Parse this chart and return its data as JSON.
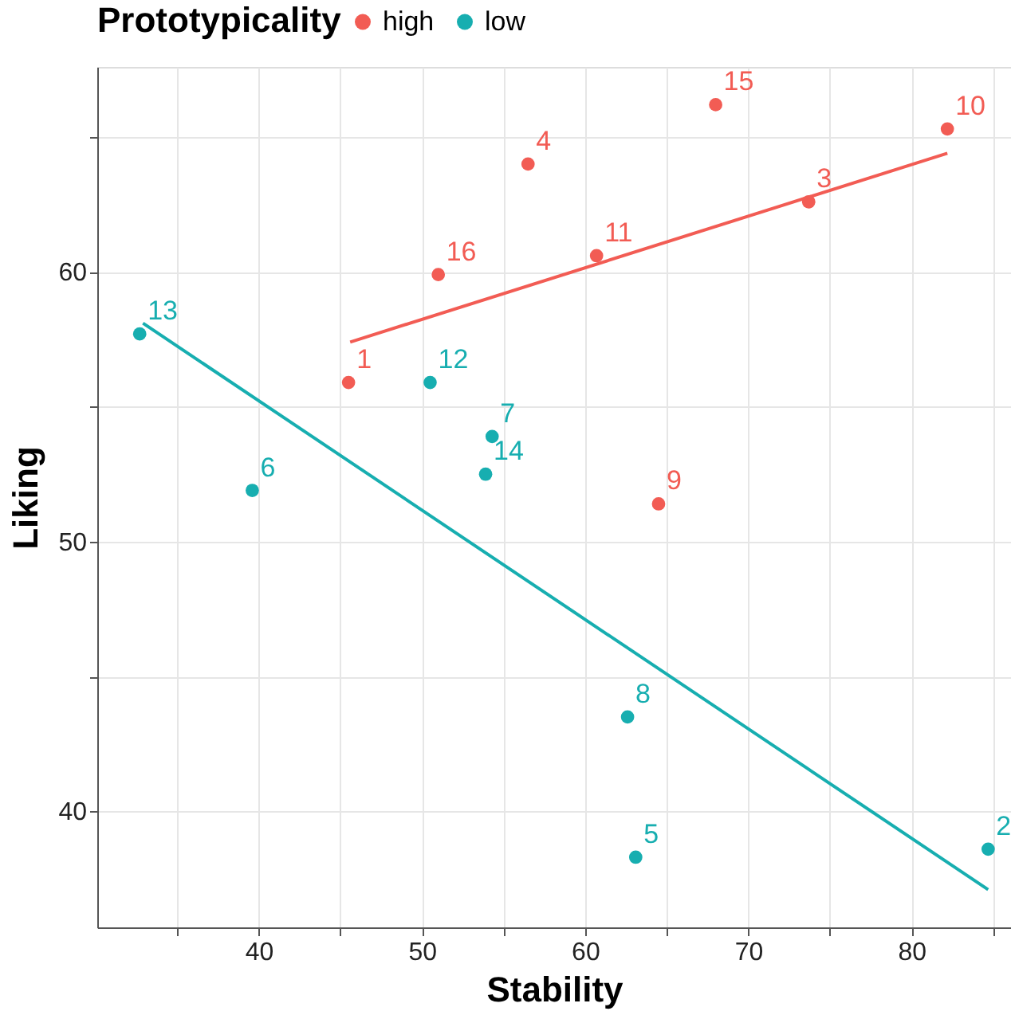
{
  "chart_data": {
    "type": "scatter",
    "xlabel": "Stability",
    "ylabel": "Liking",
    "legend_title": "Prototypicality",
    "legend": "top",
    "grid": true,
    "xlim": [
      30.1,
      86.1
    ],
    "ylim": [
      35.7,
      67.6
    ],
    "xticks": [
      {
        "value": 35,
        "label": null
      },
      40,
      {
        "value": 45,
        "label": null
      },
      50,
      {
        "value": 55,
        "label": null
      },
      60,
      {
        "value": 65,
        "label": null
      },
      70,
      {
        "value": 75,
        "label": null
      },
      80,
      {
        "value": 85,
        "label": null
      }
    ],
    "yticks": [
      40,
      {
        "value": 45,
        "label": null
      },
      50,
      {
        "value": 55,
        "label": null
      },
      60,
      {
        "value": 65,
        "label": null
      }
    ],
    "series": [
      {
        "name": "high",
        "color": "#f25c54",
        "marker": "circle",
        "x": [
          45.5,
          73.7,
          56.5,
          64.5,
          82.2,
          60.7,
          68.0,
          51.0
        ],
        "values": [
          55.9,
          62.6,
          64.0,
          51.4,
          65.3,
          60.6,
          66.2,
          59.9
        ]
      },
      {
        "name": "low",
        "color": "#17aeb0",
        "marker": "circle",
        "x": [
          84.7,
          63.1,
          39.6,
          54.3,
          62.6,
          50.5,
          32.7,
          53.9
        ],
        "values": [
          38.6,
          38.3,
          51.9,
          53.9,
          43.5,
          55.9,
          57.7,
          52.5
        ]
      },
      {
        "color": "#f25c54",
        "type": "line",
        "x": [
          45.6,
          82.2
        ],
        "values": [
          57.4,
          64.4
        ]
      },
      {
        "color": "#17aeb0",
        "type": "line",
        "x": [
          32.9,
          84.7
        ],
        "values": [
          58.1,
          37.1
        ]
      }
    ],
    "annotations": [
      {
        "text": "1",
        "x": 45.5,
        "y": 55.9
      },
      {
        "text": "2",
        "x": 84.7,
        "y": 38.6
      },
      {
        "text": "3",
        "x": 73.7,
        "y": 62.6
      },
      {
        "text": "4",
        "x": 56.5,
        "y": 64.0
      },
      {
        "text": "5",
        "x": 63.1,
        "y": 38.3
      },
      {
        "text": "6",
        "x": 39.6,
        "y": 51.9
      },
      {
        "text": "7",
        "x": 54.3,
        "y": 53.9
      },
      {
        "text": "8",
        "x": 62.6,
        "y": 43.5
      },
      {
        "text": "9",
        "x": 64.5,
        "y": 51.4
      },
      {
        "text": "10",
        "x": 82.2,
        "y": 65.3
      },
      {
        "text": "11",
        "x": 60.7,
        "y": 60.6
      },
      {
        "text": "12",
        "x": 50.5,
        "y": 55.9
      },
      {
        "text": "13",
        "x": 32.7,
        "y": 57.7
      },
      {
        "text": "14",
        "x": 53.9,
        "y": 52.5
      },
      {
        "text": "15",
        "x": 68.0,
        "y": 66.2
      },
      {
        "text": "16",
        "x": 51.0,
        "y": 59.9
      }
    ]
  }
}
